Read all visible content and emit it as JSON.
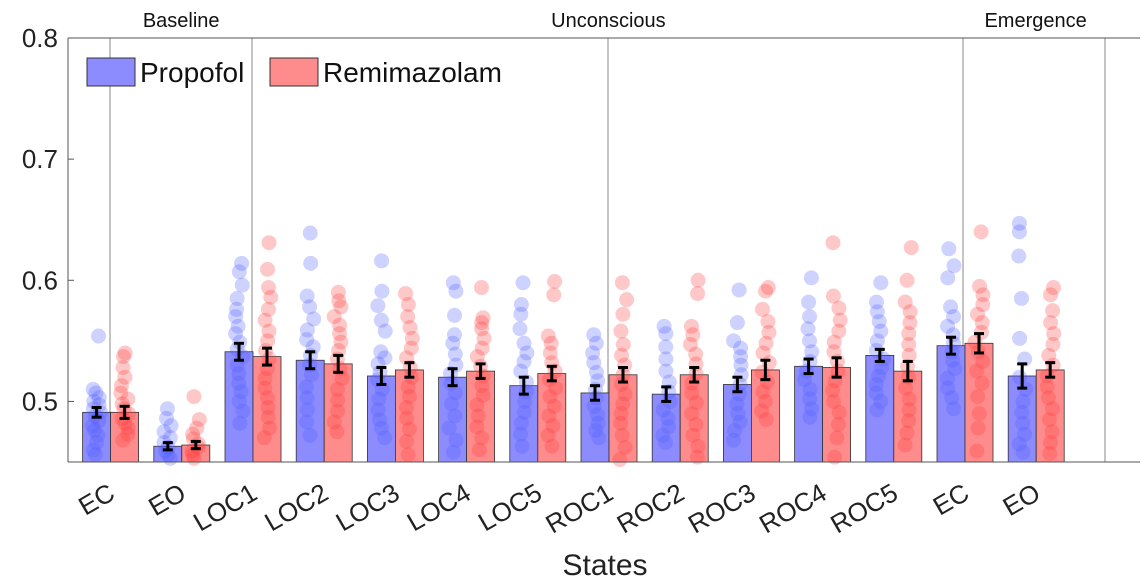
{
  "chart_data": {
    "type": "bar",
    "xlabel": "States",
    "ylabel": "",
    "ylim": [
      0.45,
      0.8
    ],
    "yticks": [
      0.5,
      0.6,
      0.7,
      0.8
    ],
    "ytick_labels": [
      "0.5",
      "0.6",
      "0.7",
      "0.8"
    ],
    "grid": false,
    "legend_position": "top-left",
    "categories": [
      "EC",
      "EO",
      "LOC1",
      "LOC2",
      "LOC3",
      "LOC4",
      "LOC5",
      "ROC1",
      "ROC2",
      "ROC3",
      "ROC4",
      "ROC5",
      "EC",
      "EO"
    ],
    "sections": [
      {
        "label": "Baseline",
        "start": 0,
        "end": 1
      },
      {
        "label": "Unconscious",
        "start": 2,
        "end": 11
      },
      {
        "label": "Emergence",
        "start": 12,
        "end": 13
      }
    ],
    "series": [
      {
        "name": "Propofol",
        "color": "#8c8cff",
        "point_color": "#4f5cff",
        "values": [
          0.491,
          0.463,
          0.541,
          0.534,
          0.521,
          0.52,
          0.513,
          0.507,
          0.506,
          0.514,
          0.529,
          0.538,
          0.546,
          0.521
        ],
        "errors": [
          0.004,
          0.003,
          0.007,
          0.007,
          0.007,
          0.007,
          0.007,
          0.006,
          0.006,
          0.006,
          0.006,
          0.005,
          0.007,
          0.01
        ],
        "points": [
          [
            0.554,
            0.51,
            0.507,
            0.503,
            0.5,
            0.497,
            0.494,
            0.491,
            0.488,
            0.484,
            0.48,
            0.476,
            0.472,
            0.466,
            0.46,
            0.456
          ],
          [
            0.494,
            0.486,
            0.48,
            0.475,
            0.47,
            0.466,
            0.462,
            0.459,
            0.456,
            0.453
          ],
          [
            0.614,
            0.607,
            0.596,
            0.585,
            0.576,
            0.57,
            0.562,
            0.556,
            0.549,
            0.543,
            0.537,
            0.53,
            0.523,
            0.515,
            0.508,
            0.5,
            0.492,
            0.482
          ],
          [
            0.639,
            0.614,
            0.587,
            0.578,
            0.568,
            0.559,
            0.551,
            0.545,
            0.538,
            0.53,
            0.522,
            0.512,
            0.503,
            0.493,
            0.483,
            0.472
          ],
          [
            0.616,
            0.591,
            0.579,
            0.567,
            0.558,
            0.541,
            0.536,
            0.531,
            0.524,
            0.518,
            0.51,
            0.502,
            0.493,
            0.485,
            0.478,
            0.47
          ],
          [
            0.598,
            0.591,
            0.571,
            0.555,
            0.548,
            0.539,
            0.53,
            0.523,
            0.515,
            0.507,
            0.498,
            0.488,
            0.478,
            0.468,
            0.458
          ],
          [
            0.598,
            0.58,
            0.572,
            0.56,
            0.548,
            0.54,
            0.533,
            0.525,
            0.516,
            0.508,
            0.5,
            0.491,
            0.482,
            0.473,
            0.463
          ],
          [
            0.555,
            0.548,
            0.54,
            0.532,
            0.524,
            0.517,
            0.51,
            0.503,
            0.496,
            0.489,
            0.482,
            0.476,
            0.47
          ],
          [
            0.562,
            0.556,
            0.545,
            0.535,
            0.525,
            0.516,
            0.508,
            0.5,
            0.493,
            0.486,
            0.479,
            0.472,
            0.466
          ],
          [
            0.592,
            0.565,
            0.55,
            0.544,
            0.537,
            0.53,
            0.522,
            0.514,
            0.506,
            0.498,
            0.49,
            0.483,
            0.476,
            0.468
          ],
          [
            0.602,
            0.582,
            0.57,
            0.56,
            0.55,
            0.541,
            0.533,
            0.525,
            0.518,
            0.51,
            0.502,
            0.494,
            0.487
          ],
          [
            0.598,
            0.582,
            0.574,
            0.566,
            0.558,
            0.55,
            0.542,
            0.535,
            0.528,
            0.521,
            0.514,
            0.507,
            0.5,
            0.493
          ],
          [
            0.626,
            0.612,
            0.602,
            0.578,
            0.57,
            0.562,
            0.555,
            0.548,
            0.541,
            0.534,
            0.527,
            0.519,
            0.511,
            0.503,
            0.494
          ],
          [
            0.647,
            0.64,
            0.62,
            0.585,
            0.552,
            0.535,
            0.52,
            0.51,
            0.5,
            0.491,
            0.482,
            0.473,
            0.465,
            0.458
          ]
        ]
      },
      {
        "name": "Remimazolam",
        "color": "#ff8c8c",
        "point_color": "#ff3b3b",
        "values": [
          0.491,
          0.464,
          0.537,
          0.531,
          0.526,
          0.525,
          0.523,
          0.522,
          0.522,
          0.526,
          0.528,
          0.525,
          0.548,
          0.526
        ],
        "errors": [
          0.005,
          0.003,
          0.007,
          0.007,
          0.006,
          0.006,
          0.006,
          0.006,
          0.006,
          0.008,
          0.008,
          0.008,
          0.008,
          0.006
        ],
        "points": [
          [
            0.54,
            0.537,
            0.528,
            0.52,
            0.513,
            0.507,
            0.502,
            0.498,
            0.494,
            0.49,
            0.486,
            0.482,
            0.478,
            0.473,
            0.468
          ],
          [
            0.504,
            0.485,
            0.478,
            0.473,
            0.469,
            0.465,
            0.462,
            0.459,
            0.456,
            0.453
          ],
          [
            0.631,
            0.609,
            0.594,
            0.586,
            0.576,
            0.567,
            0.558,
            0.55,
            0.542,
            0.535,
            0.527,
            0.519,
            0.511,
            0.503,
            0.495,
            0.487,
            0.478,
            0.47
          ],
          [
            0.59,
            0.583,
            0.578,
            0.57,
            0.563,
            0.556,
            0.549,
            0.542,
            0.535,
            0.527,
            0.519,
            0.51,
            0.501,
            0.492,
            0.483,
            0.475
          ],
          [
            0.589,
            0.58,
            0.57,
            0.561,
            0.552,
            0.544,
            0.536,
            0.528,
            0.52,
            0.512,
            0.504,
            0.495,
            0.486,
            0.477,
            0.467,
            0.456
          ],
          [
            0.594,
            0.569,
            0.565,
            0.56,
            0.552,
            0.544,
            0.537,
            0.529,
            0.521,
            0.513,
            0.505,
            0.497,
            0.488,
            0.479,
            0.47,
            0.46
          ],
          [
            0.599,
            0.588,
            0.554,
            0.548,
            0.54,
            0.532,
            0.525,
            0.518,
            0.511,
            0.504,
            0.496,
            0.488,
            0.48,
            0.472,
            0.463
          ],
          [
            0.598,
            0.584,
            0.572,
            0.558,
            0.547,
            0.538,
            0.53,
            0.522,
            0.514,
            0.506,
            0.498,
            0.49,
            0.482,
            0.472,
            0.462,
            0.452
          ],
          [
            0.6,
            0.589,
            0.562,
            0.555,
            0.547,
            0.539,
            0.531,
            0.523,
            0.515,
            0.507,
            0.499,
            0.49,
            0.481,
            0.472,
            0.463,
            0.454
          ],
          [
            0.594,
            0.591,
            0.576,
            0.566,
            0.557,
            0.548,
            0.54,
            0.532,
            0.524,
            0.516,
            0.508,
            0.5,
            0.492,
            0.485
          ],
          [
            0.631,
            0.587,
            0.577,
            0.567,
            0.558,
            0.549,
            0.541,
            0.533,
            0.525,
            0.517,
            0.509,
            0.5,
            0.491,
            0.481,
            0.47,
            0.454
          ],
          [
            0.627,
            0.6,
            0.582,
            0.574,
            0.565,
            0.556,
            0.547,
            0.538,
            0.529,
            0.52,
            0.511,
            0.502,
            0.493,
            0.484,
            0.474,
            0.464
          ],
          [
            0.64,
            0.595,
            0.588,
            0.58,
            0.572,
            0.565,
            0.557,
            0.549,
            0.541,
            0.533,
            0.525,
            0.515,
            0.504,
            0.49,
            0.478,
            0.459
          ],
          [
            0.594,
            0.588,
            0.575,
            0.565,
            0.556,
            0.547,
            0.538,
            0.53,
            0.521,
            0.512,
            0.503,
            0.494,
            0.485,
            0.475,
            0.466,
            0.457
          ]
        ]
      }
    ]
  }
}
